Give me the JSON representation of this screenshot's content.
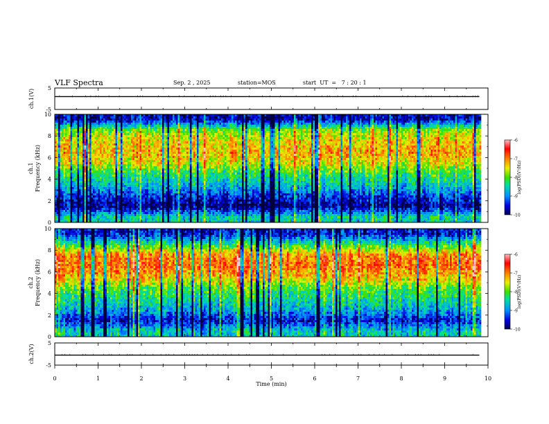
{
  "header": {
    "title": "VLF Spectra",
    "date": "Sep. 2 , 2025",
    "station": "station=MOS",
    "start": "start  UT  =   7 : 20 : 1"
  },
  "chart_data": [
    {
      "type": "line",
      "panel": "ch1-voltage",
      "ylabel": "ch.1(V)",
      "ylim": [
        -5,
        5
      ],
      "yticks": [
        5,
        -5
      ],
      "x": [
        0,
        1,
        2,
        3,
        4,
        5,
        6,
        7,
        8,
        9,
        9.8
      ],
      "series": [
        {
          "values": [
            1.0,
            1.0,
            1.0,
            1.0,
            1.0,
            1.0,
            1.0,
            1.0,
            1.0,
            1.0,
            1.0
          ]
        }
      ]
    },
    {
      "type": "heatmap",
      "panel": "ch1-spectrogram",
      "ylabel_top": "ch.1",
      "ylabel": "Frequency (kHz)",
      "ylim": [
        0,
        10
      ],
      "yticks": [
        0,
        2,
        4,
        6,
        8,
        10
      ],
      "xlim": [
        0,
        9.8
      ],
      "freq_kHz": [
        0.5,
        1.5,
        2.5,
        3.5,
        4.5,
        5.5,
        6.5,
        7.5,
        8.5,
        9.5
      ],
      "log_psd_profile": [
        -8.5,
        -9.8,
        -9.3,
        -8.6,
        -8.2,
        -7.5,
        -7.2,
        -7.4,
        -7.8,
        -9.6
      ],
      "colorbar": {
        "label": "log(PSD)(V²/Hz)",
        "range": [
          -10,
          -6
        ],
        "ticks": [
          -6,
          -7,
          -8,
          -9,
          -10
        ]
      }
    },
    {
      "type": "heatmap",
      "panel": "ch2-spectrogram",
      "ylabel_top": "ch.2",
      "ylabel": "Frequency (kHz)",
      "ylim": [
        0,
        10
      ],
      "yticks": [
        0,
        2,
        4,
        6,
        8,
        10
      ],
      "xlim": [
        0,
        9.8
      ],
      "freq_kHz": [
        0.5,
        1.5,
        2.5,
        3.5,
        4.5,
        5.5,
        6.5,
        7.5,
        8.5,
        9.5
      ],
      "log_psd_profile": [
        -8.6,
        -9.5,
        -8.8,
        -8.4,
        -8.0,
        -7.3,
        -6.9,
        -7.0,
        -8.2,
        -9.5
      ],
      "colorbar": {
        "label": "log(PSD)(V²/Hz)",
        "range": [
          -10,
          -6
        ],
        "ticks": [
          -6,
          -7,
          -8,
          -9,
          -10
        ]
      }
    },
    {
      "type": "line",
      "panel": "ch2-voltage",
      "ylabel": "ch.2(V)",
      "ylim": [
        -5,
        5
      ],
      "yticks": [
        5,
        -5
      ],
      "x": [
        0,
        1,
        2,
        3,
        4,
        5,
        6,
        7,
        8,
        9,
        9.8
      ],
      "series": [
        {
          "values": [
            -0.5,
            -0.5,
            -0.5,
            -0.5,
            -0.5,
            -0.5,
            -0.5,
            -0.5,
            -0.5,
            -0.5,
            -0.5
          ]
        }
      ]
    }
  ],
  "xaxis": {
    "label": "Time (min)",
    "ticks": [
      0,
      1,
      2,
      3,
      4,
      5,
      6,
      7,
      8,
      9,
      10
    ],
    "range": [
      0,
      10
    ]
  }
}
